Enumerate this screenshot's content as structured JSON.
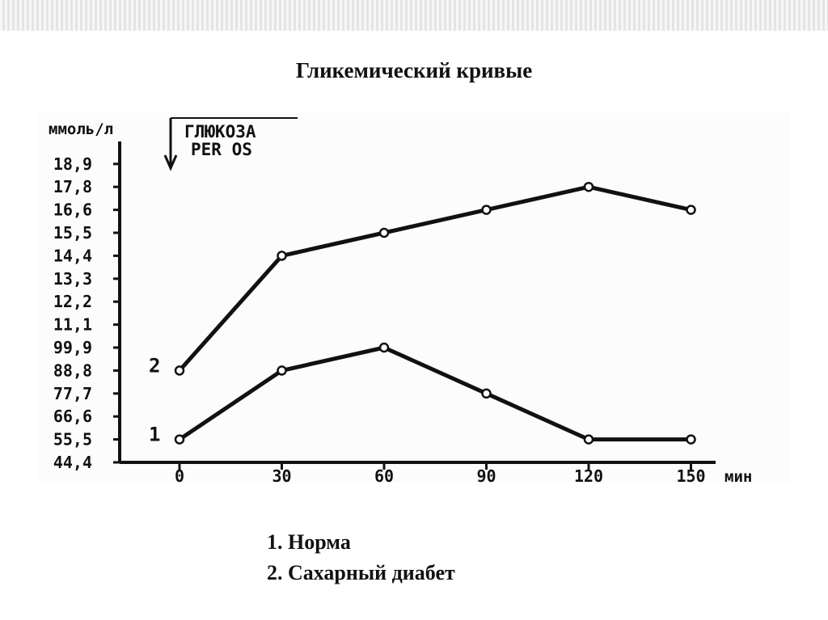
{
  "slide": {
    "title": "Гликемический кривые"
  },
  "legend": {
    "items": [
      "1. Норма",
      "2. Сахарный диабет"
    ]
  },
  "chart_data": {
    "type": "line",
    "title": "Гликемический кривые",
    "ylabel": "ммоль/л",
    "xlabel": "мин",
    "annotation": [
      "ГЛЮКОЗА",
      "PER OS"
    ],
    "x": [
      0,
      30,
      60,
      90,
      120,
      150
    ],
    "x_tick_labels": [
      "0",
      "30",
      "60",
      "90",
      "120",
      "150"
    ],
    "y_tick_labels": [
      "44,4",
      "55,5",
      "66,6",
      "77,7",
      "88,8",
      "99,9",
      "11,1",
      "12,2",
      "13,3",
      "14,4",
      "15,5",
      "16,6",
      "17,8",
      "18,9"
    ],
    "series": [
      {
        "name": "1",
        "values": [
          55.5,
          88.8,
          99.9,
          77.7,
          55.5,
          55.5
        ]
      },
      {
        "name": "2",
        "values": [
          88.8,
          14.4,
          15.5,
          16.6,
          17.8,
          16.6
        ]
      }
    ],
    "legend": [
      "1. Норма",
      "2. Сахарный диабет"
    ],
    "grid": false
  }
}
